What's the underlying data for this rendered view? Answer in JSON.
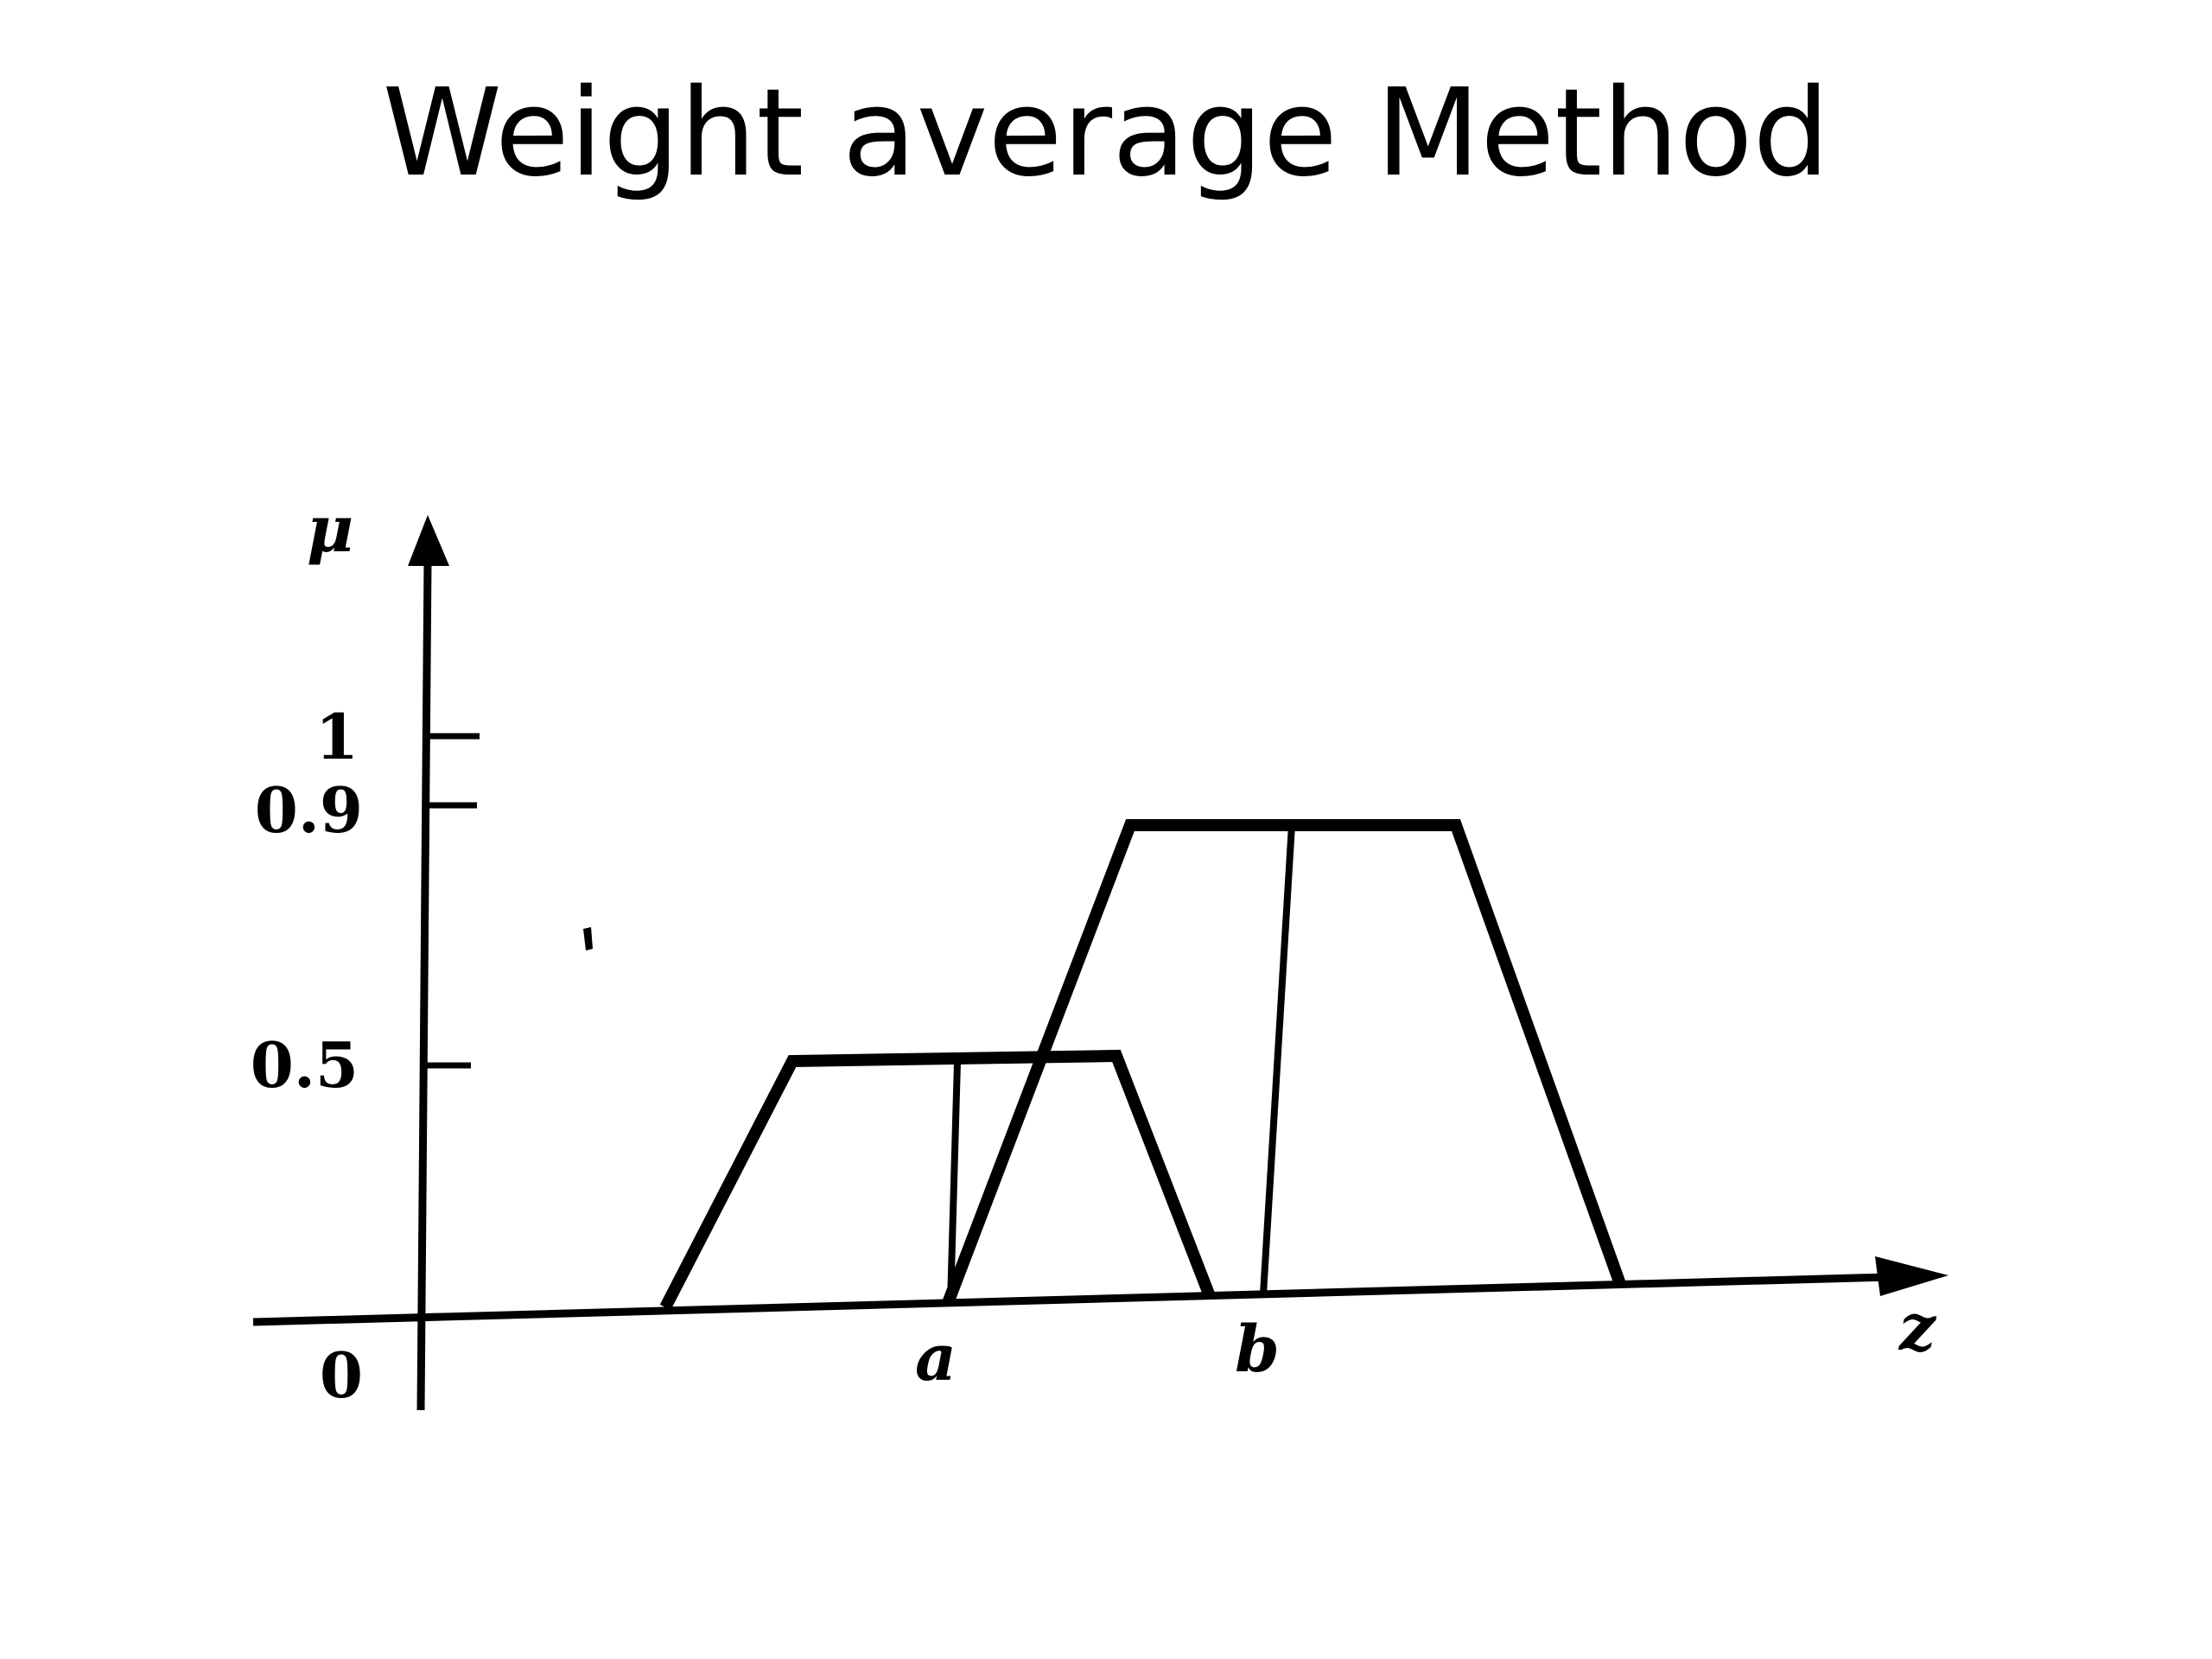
{
  "slide": {
    "title": "Weight average Method"
  },
  "diagram": {
    "y_axis_label": "μ",
    "x_axis_label": "z",
    "origin_label": "0",
    "y_ticks": [
      "1",
      "0.9",
      "0.5"
    ],
    "x_marks": [
      "a",
      "b"
    ],
    "membership_functions": [
      {
        "height": 0.5,
        "weighted_point_label": "a"
      },
      {
        "height": 0.9,
        "weighted_point_label": "b"
      }
    ]
  }
}
